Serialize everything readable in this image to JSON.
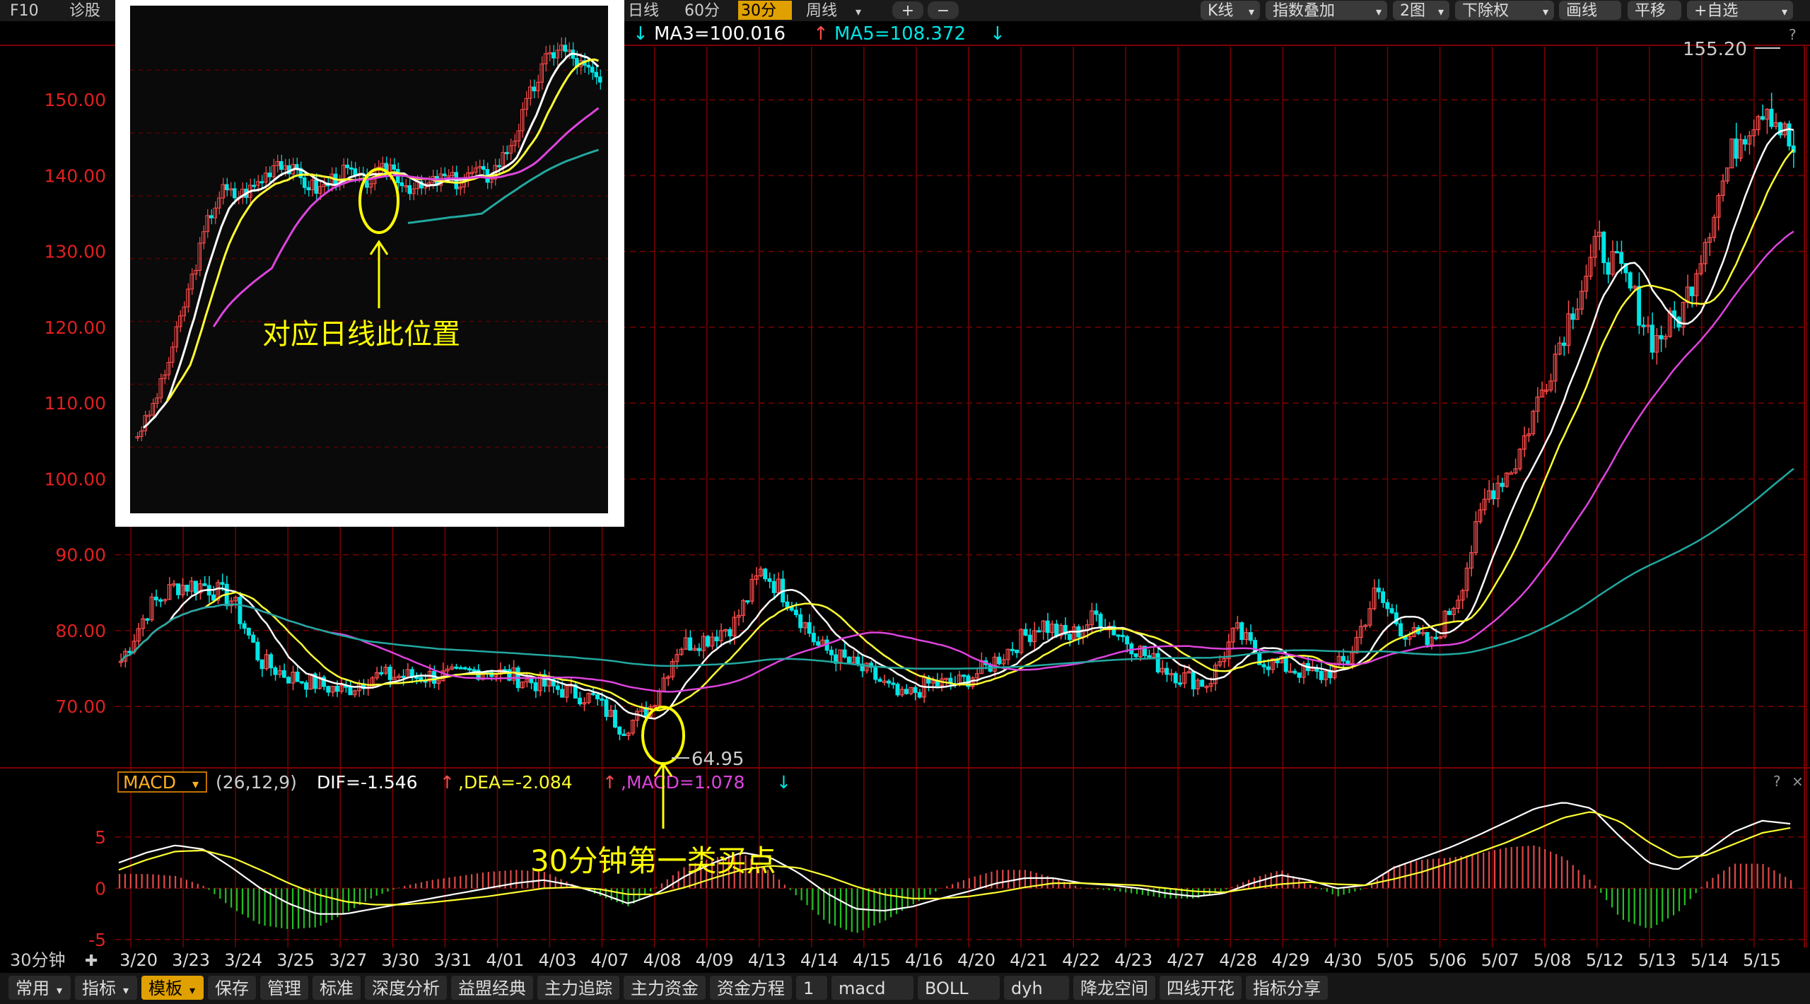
{
  "toolbar": {
    "left_items": [
      "F10",
      "诊股"
    ],
    "period_tabs": [
      {
        "label": "日线",
        "active": false
      },
      {
        "label": "60分",
        "active": false
      },
      {
        "label": "30分",
        "active": true
      },
      {
        "label": "周线",
        "active": false
      }
    ],
    "zoom_buttons": [
      "+",
      "−"
    ],
    "right_menu": [
      "K线",
      "指数叠加",
      "2图",
      "下除权",
      "画线",
      "平移",
      "+自选"
    ]
  },
  "ma_bar": {
    "ma3": "MA3=100.016",
    "ma3_arrow": "↑",
    "ma5": "MA5=108.372",
    "ma5_arrow": "↓",
    "leading_arrow": "↓"
  },
  "macd_bar": {
    "name": "MACD",
    "params": "(26,12,9)",
    "dif": "DIF=-1.546",
    "dif_arrow": "↑",
    "dea": ",DEA=-2.084",
    "dea_arrow": "↑",
    "macd": ",MACD=1.078",
    "macd_arrow": "↓"
  },
  "period_label": "30分钟",
  "bottom_tabs": [
    "常用",
    "指标",
    "模板",
    "保存",
    "管理",
    "标准",
    "深度分析",
    "益盟经典",
    "主力追踪",
    "主力资金",
    "资金方程",
    "1",
    "macd",
    "BOLL",
    "dyh",
    "降龙空间",
    "四线开花",
    "指标分享"
  ],
  "active_bottom_tab": "模板",
  "annotations": {
    "buy_point": "30分钟第一类买点",
    "daily_position": "对应日线此位置",
    "low_label": "64.95",
    "high_label": "155.20"
  },
  "colors": {
    "up": "#ff4d4d",
    "down": "#00e5e5",
    "ma_white": "#ffffff",
    "ma_yellow": "#ffff33",
    "ma_magenta": "#dd44dd",
    "ma_teal": "#22a8a0",
    "grid": "#7a0000",
    "axis_label": "#e02020",
    "annotation": "#ffff00"
  },
  "chart_data": [
    {
      "type": "candlestick",
      "yaxis_ticks": [
        70,
        80,
        90,
        100,
        110,
        120,
        130,
        140,
        150
      ],
      "ylim": [
        62,
        157
      ],
      "x_date_labels": [
        "3/20",
        "3/23",
        "3/24",
        "3/25",
        "3/27",
        "3/30",
        "3/31",
        "4/01",
        "4/03",
        "4/07",
        "4/08",
        "4/09",
        "4/13",
        "4/14",
        "4/15",
        "4/16",
        "4/20",
        "4/21",
        "4/22",
        "4/23",
        "4/27",
        "4/28",
        "4/29",
        "4/30",
        "5/05",
        "5/06",
        "5/07",
        "5/08",
        "5/12",
        "5/13",
        "5/14",
        "5/15",
        "5/"
      ],
      "price_path": [
        76,
        83,
        86,
        86,
        84,
        76,
        74,
        73,
        72,
        74,
        74,
        74,
        74,
        75,
        74,
        73,
        72,
        71,
        67,
        70,
        78,
        79,
        81,
        88,
        84,
        78,
        76,
        74,
        71,
        73,
        73,
        75,
        78,
        81,
        79,
        82,
        79,
        76,
        74,
        73,
        80,
        76,
        75,
        74,
        76,
        85,
        80,
        78,
        85,
        98,
        102,
        112,
        122,
        131,
        126,
        118,
        122,
        134,
        145,
        150,
        143
      ],
      "extreme_low": 64.95,
      "extreme_high": 155.2,
      "ma_series": [
        {
          "name": "MA3",
          "color": "white"
        },
        {
          "name": "MA5",
          "color": "yellow"
        },
        {
          "color": "magenta"
        },
        {
          "color": "teal"
        }
      ]
    },
    {
      "type": "bar+line",
      "name": "MACD",
      "params": [
        26,
        12,
        9
      ],
      "yaxis_ticks": [
        -5,
        0,
        5
      ],
      "ylim": [
        -5.5,
        9
      ],
      "dif": [
        2.5,
        3.5,
        4.2,
        3.8,
        2,
        0,
        -1.5,
        -2.5,
        -2.5,
        -2,
        -1.5,
        -1,
        -0.5,
        0,
        0.5,
        0.8,
        0.3,
        -0.5,
        -1.5,
        -0.5,
        1.2,
        2.5,
        3.5,
        3,
        1.5,
        -0.5,
        -2,
        -2.2,
        -1.8,
        -1,
        -0.3,
        0.5,
        1,
        1,
        0.5,
        0.3,
        0,
        -0.5,
        -0.8,
        -0.5,
        0.5,
        1.3,
        0.8,
        0,
        0.3,
        2,
        3,
        4,
        5.2,
        6.5,
        7.8,
        8.4,
        7.8,
        5,
        2.5,
        1.8,
        3.5,
        5.5,
        6.6,
        6.3
      ],
      "dea": [
        1.8,
        2.8,
        3.6,
        3.7,
        3,
        1.8,
        0.5,
        -0.6,
        -1.3,
        -1.6,
        -1.6,
        -1.4,
        -1.1,
        -0.8,
        -0.4,
        0,
        0.1,
        -0.1,
        -0.6,
        -0.6,
        0.1,
        1,
        1.8,
        2.2,
        2,
        1.2,
        0.2,
        -0.6,
        -1,
        -1,
        -0.8,
        -0.4,
        0.1,
        0.5,
        0.5,
        0.4,
        0.3,
        0,
        -0.3,
        -0.4,
        0,
        0.4,
        0.6,
        0.4,
        0.3,
        0.9,
        1.6,
        2.5,
        3.5,
        4.5,
        5.7,
        6.9,
        7.5,
        6.5,
        4.5,
        3,
        3.2,
        4.3,
        5.4,
        5.9
      ],
      "series": [
        {
          "name": "DIF",
          "color": "white"
        },
        {
          "name": "DEA",
          "color": "yellow"
        },
        {
          "name": "MACD",
          "color": "magenta"
        }
      ]
    },
    {
      "type": "candlestick",
      "name": "daily_inset",
      "yaxis_ticks": [
        90,
        100,
        110,
        120,
        130,
        140,
        150
      ],
      "ylim": [
        86,
        158
      ],
      "price_path": [
        92,
        96,
        102,
        110,
        118,
        126,
        131,
        130,
        131,
        133,
        136,
        134,
        132,
        131,
        133,
        134,
        132,
        133,
        135,
        132,
        131,
        132,
        133,
        132,
        134,
        133,
        136,
        140,
        146,
        151,
        154,
        152,
        150,
        148
      ],
      "ma_series": [
        {
          "color": "white"
        },
        {
          "color": "yellow"
        },
        {
          "color": "magenta"
        },
        {
          "color": "teal"
        }
      ]
    }
  ]
}
